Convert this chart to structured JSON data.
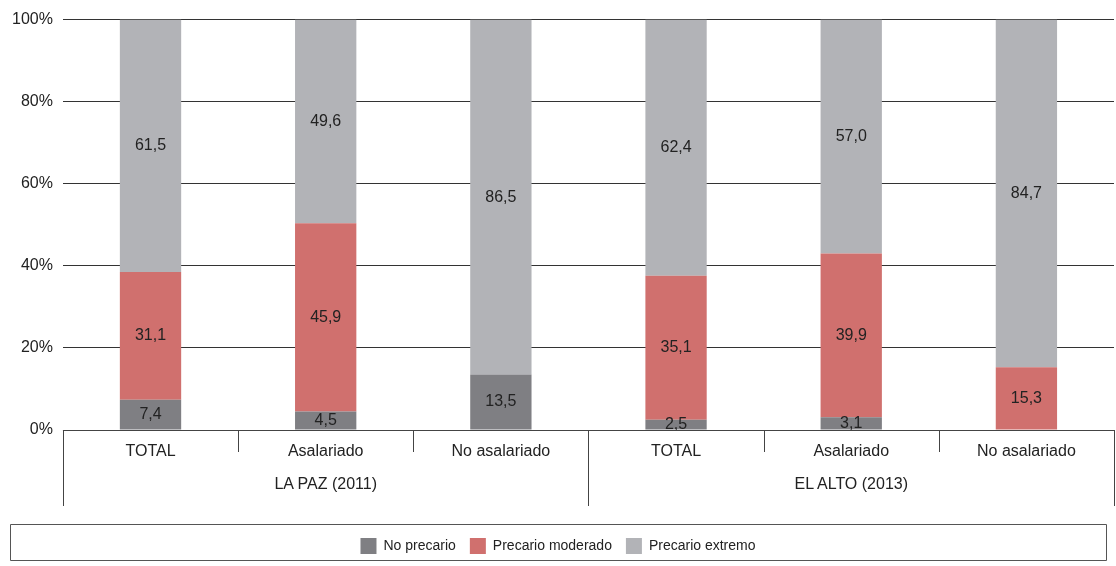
{
  "chart_data": {
    "type": "bar",
    "stacked": true,
    "categories": [
      "TOTAL",
      "Asalariado",
      "No asalariado",
      "TOTAL",
      "Asalariado",
      "No asalariado"
    ],
    "series": [
      {
        "name": "No precario",
        "color": "#7f7f83",
        "values": [
          7.4,
          4.5,
          13.5,
          2.5,
          3.1,
          null
        ],
        "value_labels": [
          "7,4",
          "4,5",
          "13,5",
          "2,5",
          "3,1",
          null
        ]
      },
      {
        "name": "Precario moderado",
        "color": "#d0706e",
        "values": [
          31.1,
          45.9,
          null,
          35.1,
          39.9,
          15.3
        ],
        "value_labels": [
          "31,1",
          "45,9",
          null,
          "35,1",
          "39,9",
          "15,3"
        ]
      },
      {
        "name": "Precario extremo",
        "color": "#b2b3b7",
        "values": [
          61.5,
          49.6,
          86.5,
          62.4,
          57.0,
          84.7
        ],
        "value_labels": [
          "61,5",
          "49,6",
          "86,5",
          "62,4",
          "57,0",
          "84,7"
        ]
      }
    ],
    "ylim": [
      0,
      100
    ],
    "yticks": [
      {
        "value": 0,
        "label": "0%"
      },
      {
        "value": 20,
        "label": "20%"
      },
      {
        "value": 40,
        "label": "40%"
      },
      {
        "value": 60,
        "label": "60%"
      },
      {
        "value": 80,
        "label": "80%"
      },
      {
        "value": 100,
        "label": "100%"
      }
    ],
    "grid": "y",
    "legend": "bottom",
    "annotations": [
      "LA PAZ (2011)",
      "EL ALTO (2013)"
    ]
  }
}
